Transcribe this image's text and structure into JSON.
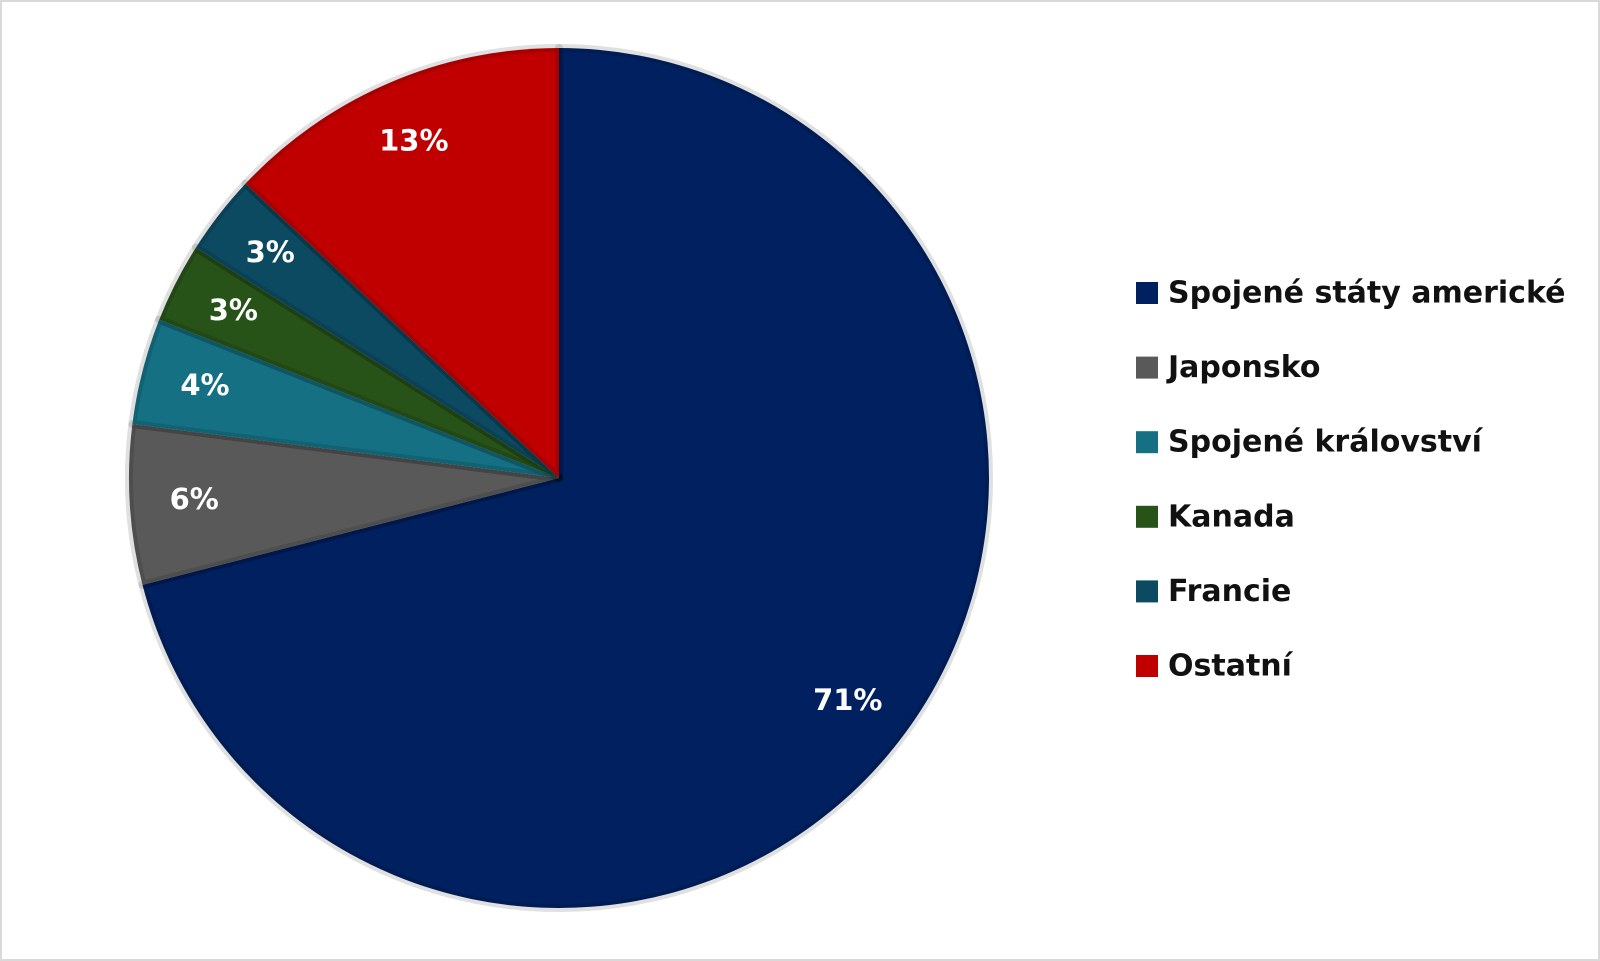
{
  "chart_data": {
    "type": "pie",
    "categories": [
      "Spojené státy americké",
      "Japonsko",
      "Spojené království",
      "Kanada",
      "Francie",
      "Ostatní"
    ],
    "values": [
      71,
      6,
      4,
      3,
      3,
      13
    ],
    "value_labels": [
      "71%",
      "6%",
      "4%",
      "3%",
      "3%",
      "13%"
    ],
    "colors": [
      "#002060",
      "#595959",
      "#147082",
      "#275218",
      "#0c4a62",
      "#c00000"
    ],
    "legend": "right"
  }
}
